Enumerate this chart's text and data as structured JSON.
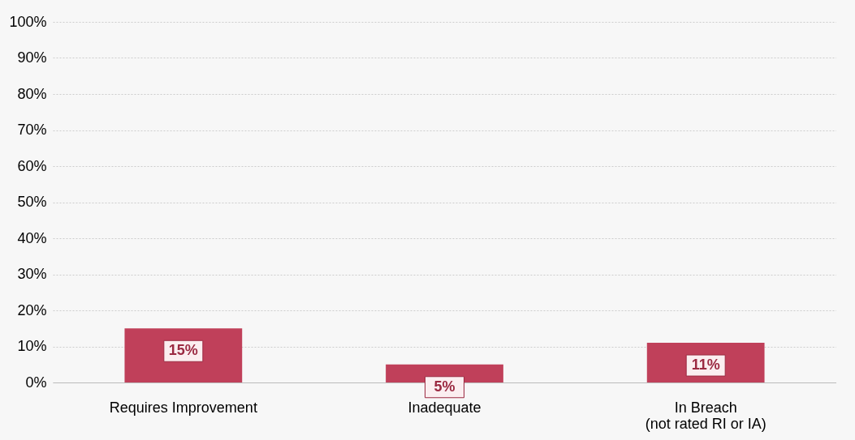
{
  "chart_data": {
    "type": "bar",
    "categories": [
      "Requires Improvement",
      "Inadequate",
      "In Breach\n(not rated RI or IA)"
    ],
    "values": [
      15,
      5,
      11
    ],
    "color": "#c0405a",
    "ylim": [
      0,
      100
    ],
    "yticks": [
      {
        "value": 0,
        "label": "0%"
      },
      {
        "value": 10,
        "label": "10%"
      },
      {
        "value": 20,
        "label": "20%"
      },
      {
        "value": 30,
        "label": "30%"
      },
      {
        "value": 40,
        "label": "40%"
      },
      {
        "value": 50,
        "label": "50%"
      },
      {
        "value": 60,
        "label": "60%"
      },
      {
        "value": 70,
        "label": "70%"
      },
      {
        "value": 80,
        "label": "80%"
      },
      {
        "value": 90,
        "label": "90%"
      },
      {
        "value": 100,
        "label": "100%"
      }
    ],
    "value_labels": [
      "15%",
      "5%",
      "11%"
    ],
    "grid": "y"
  }
}
